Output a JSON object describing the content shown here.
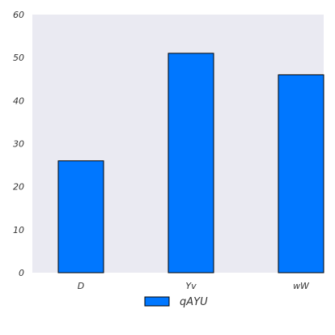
{
  "chart_data": {
    "type": "bar",
    "categories": [
      "D",
      "Yv",
      "wW"
    ],
    "series": [
      {
        "name": "qAYU",
        "values": [
          26,
          51,
          46
        ]
      }
    ],
    "ylim": [
      0,
      60
    ],
    "yticks": [
      0,
      10,
      20,
      30,
      40,
      50,
      60
    ],
    "grid": false,
    "legend_position": "bottom-center",
    "colors": {
      "plot_background": "#eaeaf2",
      "bar_fill": "#0077ff",
      "bar_edge": "#000000"
    }
  }
}
